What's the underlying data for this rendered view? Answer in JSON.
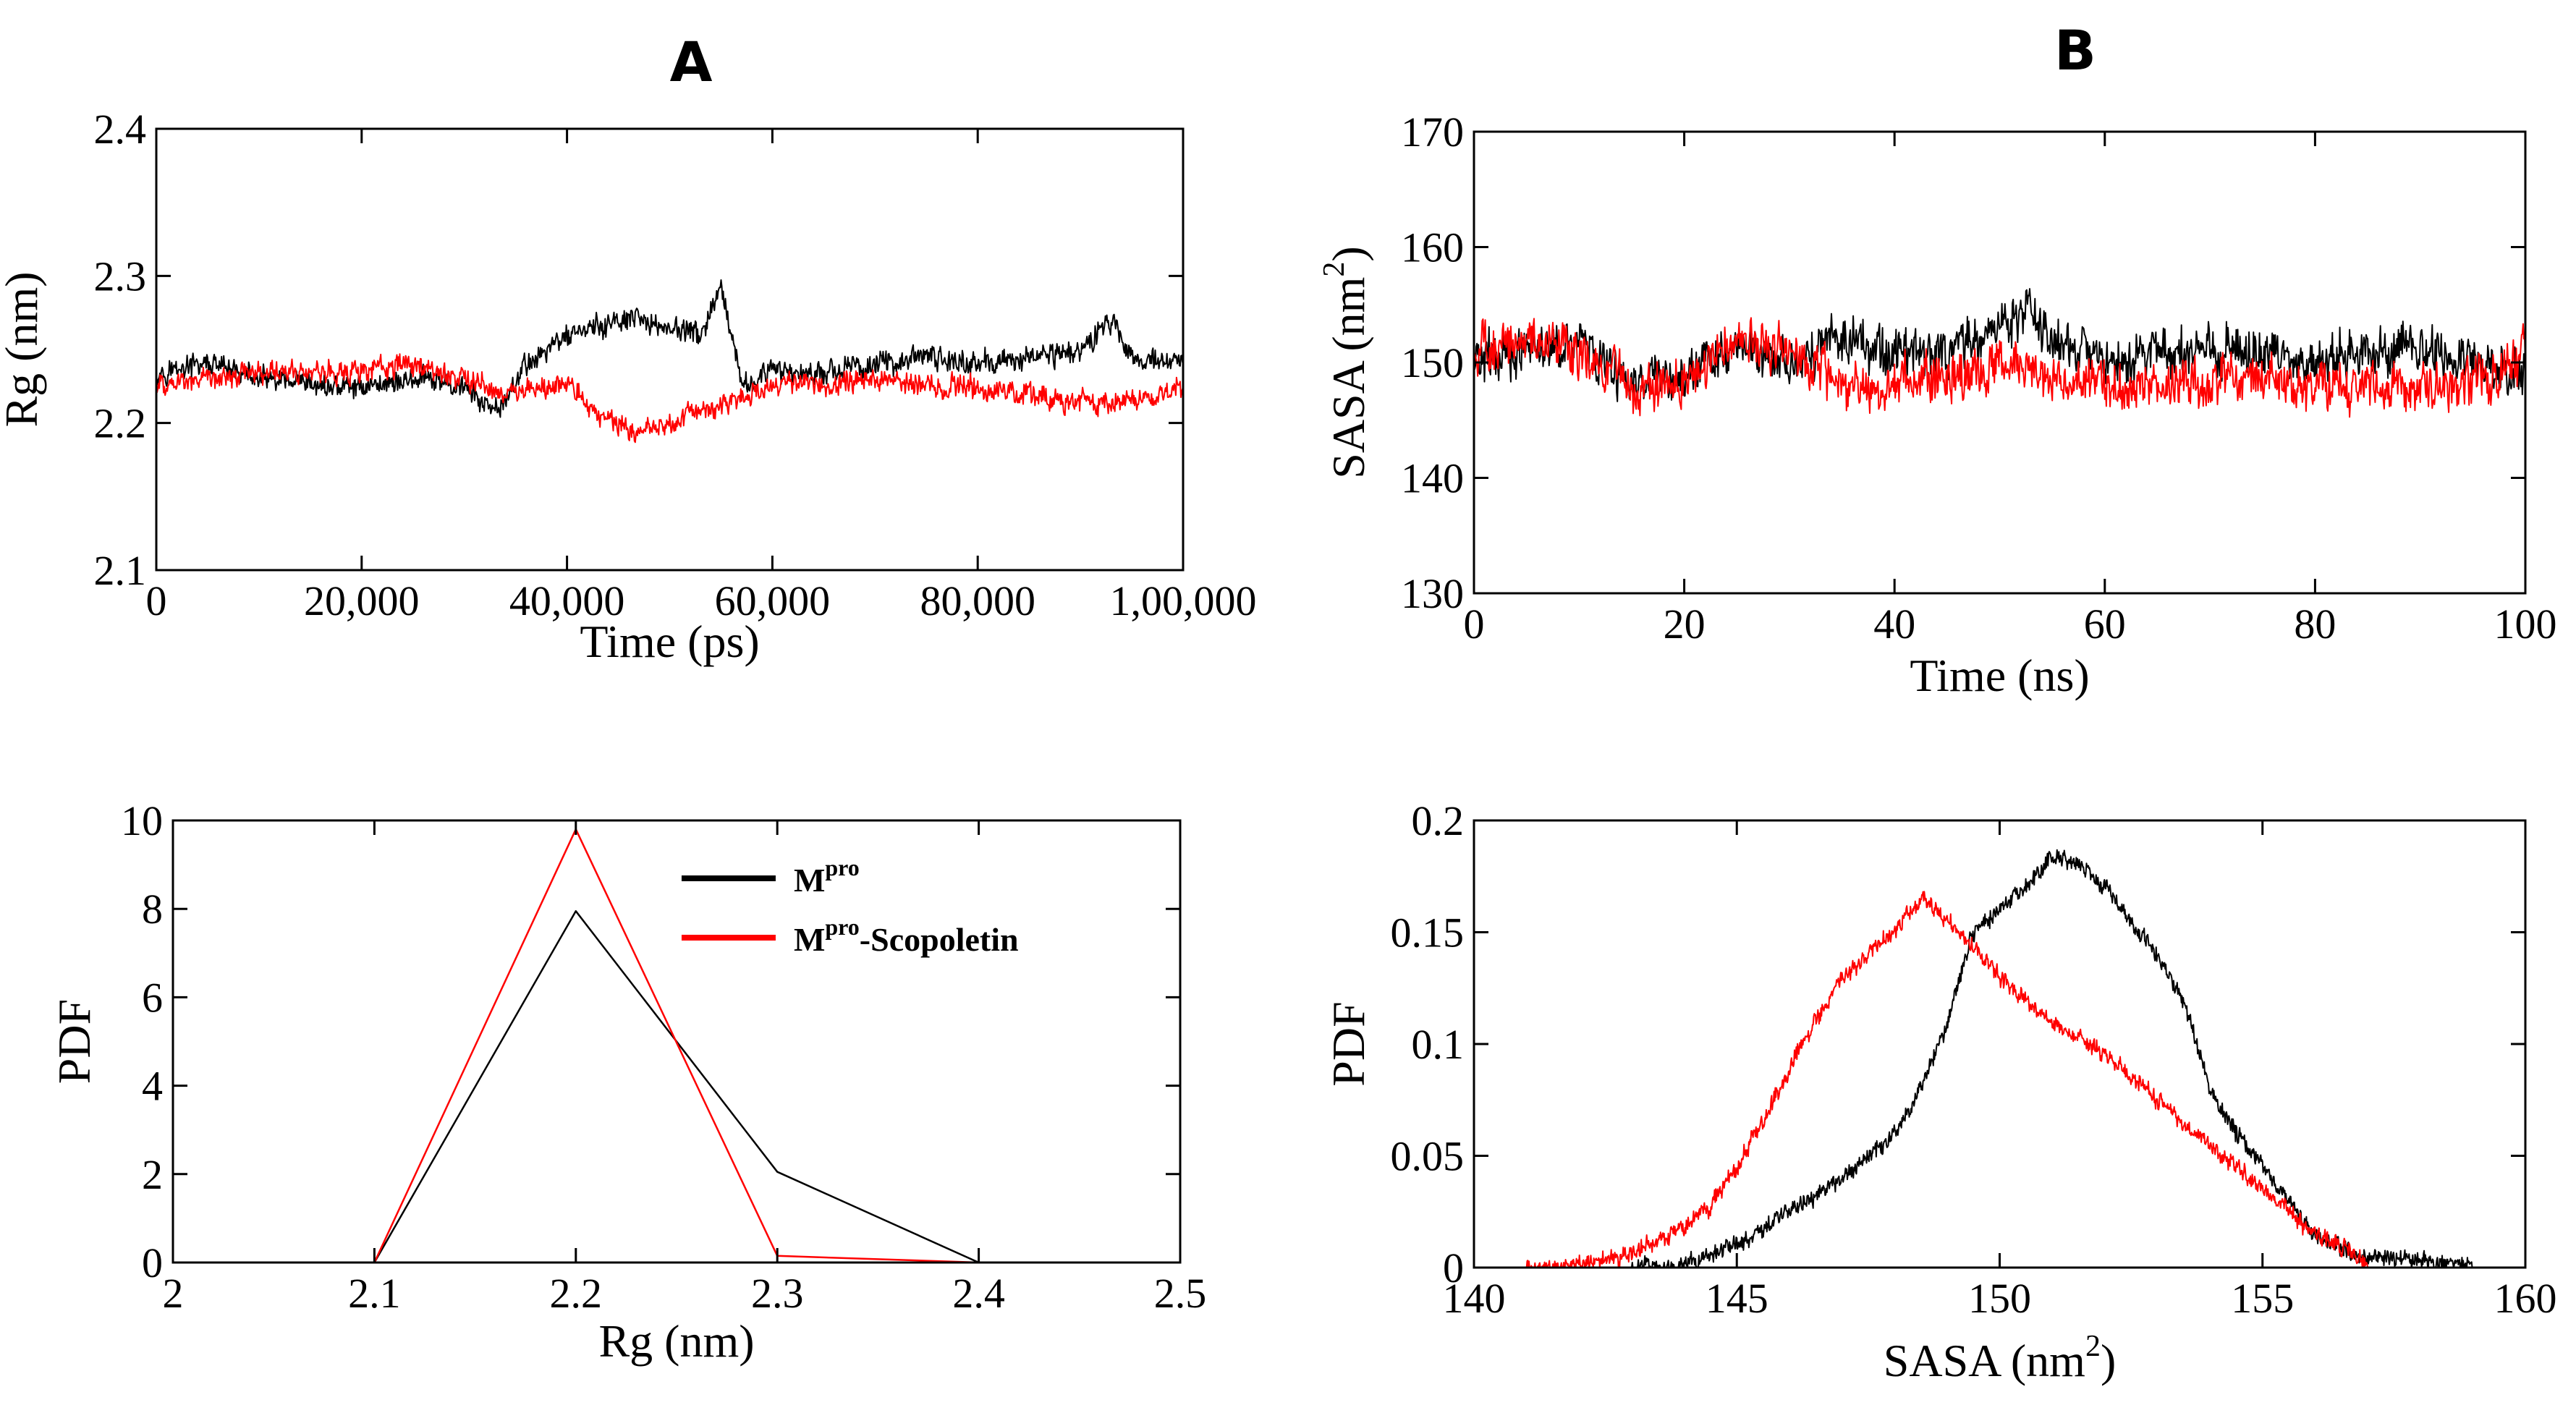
{
  "panel_labels": {
    "a": "A",
    "b": "B"
  },
  "colors": {
    "series1": "#000000",
    "series2": "#ff0000"
  },
  "chart_data": [
    {
      "id": "rg_time",
      "type": "line",
      "title": "",
      "xlabel": "Time (ps)",
      "ylabel": "Rg (nm)",
      "xlim": [
        0,
        100000
      ],
      "ylim": [
        2.1,
        2.4
      ],
      "xticks": [
        0,
        20000,
        40000,
        60000,
        80000,
        100000
      ],
      "xtick_labels": [
        "0",
        "20,000",
        "40,000",
        "60,000",
        "80,000",
        "1,00,000"
      ],
      "yticks": [
        2.1,
        2.2,
        2.3,
        2.4
      ],
      "ytick_labels": [
        "2.1",
        "2.2",
        "2.3",
        "2.4"
      ],
      "series": [
        {
          "name": "Mpro",
          "color": "#000000",
          "x": [
            0,
            5000,
            10000,
            15000,
            20000,
            25000,
            30000,
            33000,
            36000,
            40000,
            43000,
            46000,
            50000,
            53000,
            55000,
            57000,
            60000,
            65000,
            70000,
            75000,
            80000,
            85000,
            90000,
            93000,
            95000,
            100000
          ],
          "y": [
            2.235,
            2.24,
            2.23,
            2.225,
            2.225,
            2.23,
            2.225,
            2.205,
            2.24,
            2.26,
            2.265,
            2.27,
            2.265,
            2.26,
            2.29,
            2.225,
            2.235,
            2.235,
            2.24,
            2.245,
            2.24,
            2.245,
            2.25,
            2.27,
            2.245,
            2.24
          ],
          "noise": 0.012
        },
        {
          "name": "Mpro-Scopoletin",
          "color": "#ff0000",
          "x": [
            0,
            5000,
            10000,
            15000,
            20000,
            25000,
            30000,
            35000,
            40000,
            43000,
            47000,
            50000,
            53000,
            57000,
            60000,
            65000,
            70000,
            75000,
            80000,
            85000,
            90000,
            95000,
            100000
          ],
          "y": [
            2.225,
            2.23,
            2.235,
            2.235,
            2.235,
            2.24,
            2.23,
            2.22,
            2.225,
            2.205,
            2.195,
            2.2,
            2.21,
            2.215,
            2.225,
            2.225,
            2.23,
            2.225,
            2.225,
            2.22,
            2.215,
            2.215,
            2.225
          ],
          "noise": 0.012
        }
      ]
    },
    {
      "id": "sasa_time",
      "type": "line",
      "title": "",
      "xlabel": "Time (ns)",
      "ylabel_main": "SASA (nm",
      "ylabel_sup": "2",
      "ylabel_end": ")",
      "xlim": [
        0,
        100
      ],
      "ylim": [
        130,
        170
      ],
      "xticks": [
        0,
        20,
        40,
        60,
        80,
        100
      ],
      "xtick_labels": [
        "0",
        "20",
        "40",
        "60",
        "80",
        "100"
      ],
      "yticks": [
        130,
        140,
        150,
        160,
        170
      ],
      "ytick_labels": [
        "130",
        "140",
        "150",
        "160",
        "170"
      ],
      "series": [
        {
          "name": "Mpro",
          "color": "#000000",
          "x": [
            0,
            5,
            10,
            15,
            20,
            25,
            30,
            35,
            40,
            45,
            50,
            53,
            55,
            60,
            65,
            70,
            75,
            80,
            85,
            90,
            95,
            100
          ],
          "y": [
            150,
            151,
            152,
            148,
            149,
            151,
            150,
            152,
            151,
            151,
            153,
            155,
            152,
            150,
            151,
            151,
            151,
            150,
            151,
            151,
            150,
            149
          ],
          "noise": 3.2
        },
        {
          "name": "Mpro-Scopoletin",
          "color": "#ff0000",
          "x": [
            0,
            5,
            10,
            15,
            20,
            25,
            30,
            35,
            40,
            45,
            50,
            55,
            60,
            65,
            70,
            75,
            80,
            85,
            90,
            95,
            100
          ],
          "y": [
            151,
            152,
            151,
            148,
            148,
            152,
            151,
            148,
            148,
            149,
            150,
            149,
            148,
            148,
            148,
            149,
            148,
            148,
            148,
            148,
            151
          ],
          "noise": 3.2
        }
      ]
    },
    {
      "id": "rg_pdf",
      "type": "line",
      "title": "",
      "xlabel": "Rg (nm)",
      "ylabel": "PDF",
      "xlim": [
        2.0,
        2.5
      ],
      "ylim": [
        0,
        10
      ],
      "xticks": [
        2.0,
        2.1,
        2.2,
        2.3,
        2.4,
        2.5
      ],
      "xtick_labels": [
        "2",
        "2.1",
        "2.2",
        "2.3",
        "2.4",
        "2.5"
      ],
      "yticks": [
        0,
        2,
        4,
        6,
        8,
        10
      ],
      "ytick_labels": [
        "0",
        "2",
        "4",
        "6",
        "8",
        "10"
      ],
      "series": [
        {
          "name": "Mpro",
          "color": "#000000",
          "x": [
            2.1,
            2.2,
            2.3,
            2.4
          ],
          "y": [
            0,
            7.95,
            2.05,
            0
          ]
        },
        {
          "name": "Mpro-Scopoletin",
          "color": "#ff0000",
          "x": [
            2.1,
            2.2,
            2.3,
            2.4
          ],
          "y": [
            0,
            9.8,
            0.15,
            0
          ]
        }
      ],
      "legend": {
        "placement": "top-right",
        "entries": [
          {
            "main": "M",
            "sup": "pro",
            "suffix": "",
            "color": "#000000"
          },
          {
            "main": "M",
            "sup": "pro",
            "suffix": "-Scopoletin",
            "color": "#ff0000"
          }
        ]
      }
    },
    {
      "id": "sasa_pdf",
      "type": "line",
      "title": "",
      "xlabel_main": "SASA (nm",
      "xlabel_sup": "2",
      "xlabel_end": ")",
      "ylabel": "PDF",
      "xlim": [
        140,
        160
      ],
      "ylim": [
        0,
        0.2
      ],
      "xticks": [
        140,
        145,
        150,
        155,
        160
      ],
      "xtick_labels": [
        "140",
        "145",
        "150",
        "155",
        "160"
      ],
      "yticks": [
        0,
        0.05,
        0.1,
        0.15,
        0.2
      ],
      "ytick_labels": [
        "0",
        "0.05",
        "0.1",
        "0.15",
        "0.2"
      ],
      "series": [
        {
          "name": "Mpro",
          "color": "#000000",
          "x": [
            143,
            144,
            145,
            146,
            147,
            148,
            148.5,
            149,
            149.5,
            150,
            150.5,
            151,
            151.5,
            152,
            153,
            153.5,
            154,
            154.5,
            155,
            155.5,
            156,
            156.5,
            157,
            158,
            159
          ],
          "y": [
            0,
            0.002,
            0.01,
            0.025,
            0.04,
            0.06,
            0.08,
            0.11,
            0.15,
            0.16,
            0.17,
            0.185,
            0.18,
            0.17,
            0.14,
            0.12,
            0.08,
            0.06,
            0.045,
            0.03,
            0.015,
            0.008,
            0.005,
            0.003,
            0.001
          ],
          "noise": 0.006
        },
        {
          "name": "Mpro-Scopoletin",
          "color": "#ff0000",
          "x": [
            141,
            142,
            143,
            144,
            144.5,
            145,
            145.5,
            146,
            147,
            148,
            148.5,
            149,
            150,
            151,
            152,
            153,
            154,
            155,
            155.5,
            156,
            157
          ],
          "y": [
            0,
            0.001,
            0.006,
            0.018,
            0.028,
            0.045,
            0.065,
            0.09,
            0.13,
            0.15,
            0.165,
            0.155,
            0.13,
            0.11,
            0.095,
            0.075,
            0.055,
            0.035,
            0.025,
            0.015,
            0.003
          ],
          "noise": 0.006
        }
      ]
    }
  ]
}
